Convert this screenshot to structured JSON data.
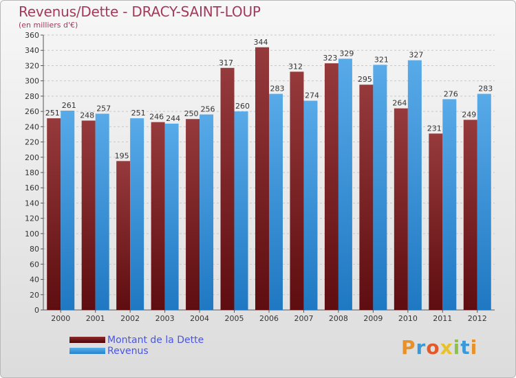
{
  "title": "Revenus/Dette - DRACY-SAINT-LOUP",
  "subtitle": "(en milliers d'€)",
  "colors": {
    "dette": "#7a1d1f",
    "revenus": "#2e8fd6",
    "title": "#a33a5a",
    "legend_text": "#4a55e0"
  },
  "legend": {
    "dette_label": "Montant de la Dette",
    "revenus_label": "Revenus"
  },
  "logo": {
    "text": "Proxiti"
  },
  "chart_data": {
    "type": "bar",
    "title": "Revenus/Dette - DRACY-SAINT-LOUP",
    "ylabel": "(en milliers d'€)",
    "xlabel": "",
    "categories": [
      "2000",
      "2001",
      "2002",
      "2003",
      "2004",
      "2005",
      "2006",
      "2007",
      "2008",
      "2009",
      "2010",
      "2011",
      "2012"
    ],
    "series": [
      {
        "name": "Montant de la Dette",
        "values": [
          251,
          248,
          195,
          246,
          250,
          317,
          344,
          312,
          323,
          295,
          264,
          231,
          249
        ]
      },
      {
        "name": "Revenus",
        "values": [
          261,
          257,
          251,
          244,
          256,
          260,
          283,
          274,
          329,
          321,
          327,
          276,
          283
        ]
      }
    ],
    "ylim": [
      0,
      360
    ],
    "yticks": [
      0,
      20,
      40,
      60,
      80,
      100,
      120,
      140,
      160,
      180,
      200,
      220,
      240,
      260,
      280,
      300,
      320,
      340,
      360
    ],
    "grid": true,
    "legend_position": "bottom-left"
  }
}
